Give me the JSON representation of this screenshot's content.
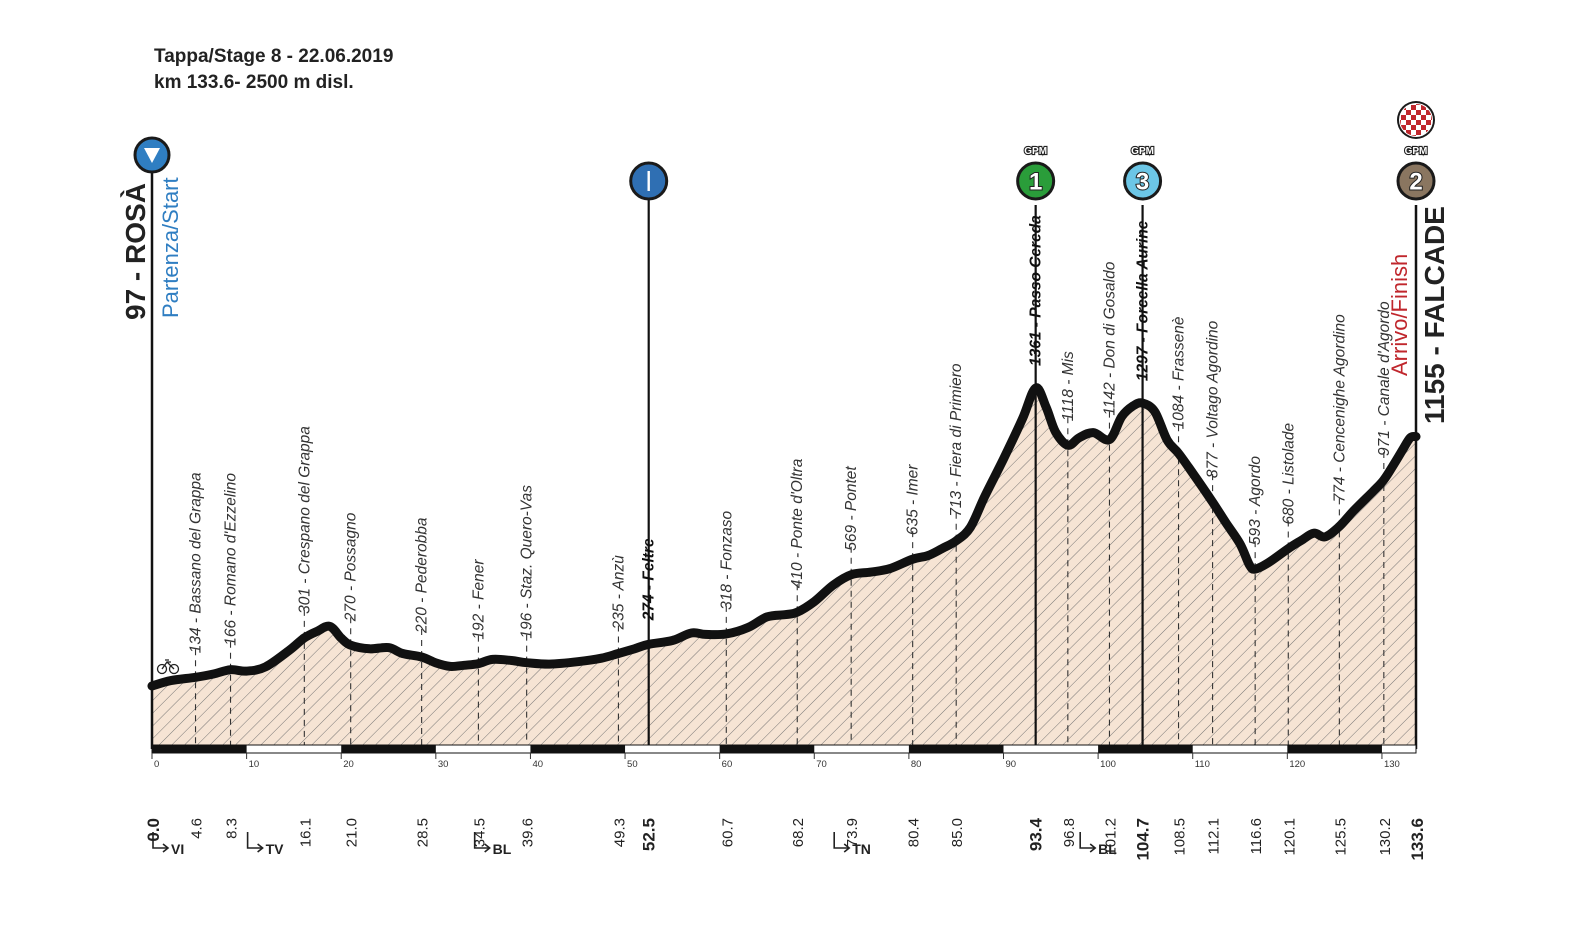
{
  "header": {
    "line1": "Tappa/Stage 8 - 22.06.2019",
    "line2": "km 133.6- 2500 m disl."
  },
  "colors": {
    "fill": "#f6e4d4",
    "hatch": "#6b6b6b",
    "outline": "#111111",
    "start_blue": "#2f7ec2",
    "finish_red": "#c0272d",
    "gpm1_green": "#2a9d3a",
    "gpm3_light_blue": "#6cc6e6",
    "gpm2_brown": "#8a7660",
    "feed_blue": "#2f6fb3"
  },
  "chart_data": {
    "type": "area",
    "title": "Tappa/Stage 8 - 22.06.2019",
    "subtitle": "km 133.6- 2500 m disl.",
    "xlabel": "",
    "ylabel": "",
    "xlim": [
      0,
      133.6
    ],
    "ylim": [
      0,
      1361
    ],
    "axis_ticks": [
      0,
      10,
      20,
      30,
      40,
      50,
      60,
      70,
      80,
      90,
      100,
      110,
      120,
      130
    ],
    "profile": [
      [
        0,
        97
      ],
      [
        2,
        120
      ],
      [
        4.6,
        134
      ],
      [
        6.5,
        148
      ],
      [
        8.3,
        166
      ],
      [
        10,
        160
      ],
      [
        12,
        178
      ],
      [
        14.5,
        248
      ],
      [
        16.1,
        301
      ],
      [
        17.5,
        330
      ],
      [
        18.8,
        350
      ],
      [
        20,
        300
      ],
      [
        21,
        270
      ],
      [
        23,
        255
      ],
      [
        25,
        260
      ],
      [
        26.5,
        235
      ],
      [
        28.5,
        220
      ],
      [
        30,
        195
      ],
      [
        31.5,
        180
      ],
      [
        33,
        185
      ],
      [
        34.5,
        192
      ],
      [
        36,
        210
      ],
      [
        38,
        205
      ],
      [
        39.6,
        196
      ],
      [
        42,
        190
      ],
      [
        45,
        200
      ],
      [
        47.5,
        215
      ],
      [
        49.3,
        235
      ],
      [
        51,
        255
      ],
      [
        52.5,
        274
      ],
      [
        55,
        290
      ],
      [
        57,
        322
      ],
      [
        58.5,
        316
      ],
      [
        60.7,
        318
      ],
      [
        63,
        345
      ],
      [
        65,
        390
      ],
      [
        67,
        400
      ],
      [
        68.2,
        410
      ],
      [
        70,
        455
      ],
      [
        72,
        525
      ],
      [
        73.9,
        569
      ],
      [
        76,
        580
      ],
      [
        78,
        595
      ],
      [
        80.4,
        635
      ],
      [
        82,
        650
      ],
      [
        83.5,
        680
      ],
      [
        85,
        713
      ],
      [
        86.5,
        770
      ],
      [
        88,
        900
      ],
      [
        90,
        1060
      ],
      [
        92,
        1230
      ],
      [
        93.4,
        1361
      ],
      [
        94.5,
        1280
      ],
      [
        95.5,
        1175
      ],
      [
        96.8,
        1118
      ],
      [
        98,
        1150
      ],
      [
        99.5,
        1172
      ],
      [
        101.2,
        1142
      ],
      [
        102.5,
        1240
      ],
      [
        103.7,
        1285
      ],
      [
        104.7,
        1297
      ],
      [
        106,
        1260
      ],
      [
        107.3,
        1140
      ],
      [
        108.5,
        1084
      ],
      [
        110,
        1000
      ],
      [
        112.1,
        877
      ],
      [
        113.5,
        790
      ],
      [
        115,
        700
      ],
      [
        116,
        610
      ],
      [
        116.6,
        593
      ],
      [
        118,
        620
      ],
      [
        120.1,
        680
      ],
      [
        121.5,
        715
      ],
      [
        122.8,
        745
      ],
      [
        124,
        730
      ],
      [
        125.5,
        774
      ],
      [
        127,
        840
      ],
      [
        129,
        920
      ],
      [
        130.2,
        971
      ],
      [
        131.3,
        1040
      ],
      [
        132.2,
        1100
      ],
      [
        133,
        1150
      ],
      [
        133.6,
        1155
      ]
    ],
    "locations": [
      {
        "km": 4.6,
        "label": "134 - Bassano del Grappa",
        "km_label": "4.6",
        "bold": false
      },
      {
        "km": 8.3,
        "label": "166 - Romano d'Ezzelino",
        "km_label": "8.3",
        "bold": false
      },
      {
        "km": 16.1,
        "label": "301 - Crespano del Grappa",
        "km_label": "16.1",
        "bold": false
      },
      {
        "km": 21.0,
        "label": "270 - Possagno",
        "km_label": "21.0",
        "bold": false
      },
      {
        "km": 28.5,
        "label": "220 - Pederobba",
        "km_label": "28.5",
        "bold": false
      },
      {
        "km": 34.5,
        "label": "192 - Fener",
        "km_label": "34.5",
        "bold": false
      },
      {
        "km": 39.6,
        "label": "196 - Staz. Quero-Vas",
        "km_label": "39.6",
        "bold": false
      },
      {
        "km": 49.3,
        "label": "235 - Anzù",
        "km_label": "49.3",
        "bold": false
      },
      {
        "km": 52.5,
        "label": "274 - Feltre",
        "km_label": "52.5",
        "bold": true
      },
      {
        "km": 60.7,
        "label": "318 - Fonzaso",
        "km_label": "60.7",
        "bold": false
      },
      {
        "km": 68.2,
        "label": "410 - Ponte d'Oltra",
        "km_label": "68.2",
        "bold": false
      },
      {
        "km": 73.9,
        "label": "569 - Pontet",
        "km_label": "73.9",
        "bold": false
      },
      {
        "km": 80.4,
        "label": "635 - Imer",
        "km_label": "80.4",
        "bold": false
      },
      {
        "km": 85.0,
        "label": "713 - Fiera di Primiero",
        "km_label": "85.0",
        "bold": false
      },
      {
        "km": 93.4,
        "label": "1361 - Passo Cereda",
        "km_label": "93.4",
        "bold": true
      },
      {
        "km": 96.8,
        "label": "1118 - Mis",
        "km_label": "96.8",
        "bold": false
      },
      {
        "km": 101.2,
        "label": "1142 - Don di Gosaldo",
        "km_label": "101.2",
        "bold": false
      },
      {
        "km": 104.7,
        "label": "1297 - Forcella Aurine",
        "km_label": "104.7",
        "bold": true
      },
      {
        "km": 108.5,
        "label": "1084 - Frassenè",
        "km_label": "108.5",
        "bold": false
      },
      {
        "km": 112.1,
        "label": "877 - Voltago Agordino",
        "km_label": "112.1",
        "bold": false
      },
      {
        "km": 116.6,
        "label": "593 - Agordo",
        "km_label": "116.6",
        "bold": false
      },
      {
        "km": 120.1,
        "label": "680 - Listolade",
        "km_label": "120.1",
        "bold": false
      },
      {
        "km": 125.5,
        "label": "774 - Cencenighe Agordino",
        "km_label": "125.5",
        "bold": false
      },
      {
        "km": 130.2,
        "label": "971 - Canale d'Agordo",
        "km_label": "130.2",
        "bold": false
      }
    ],
    "start": {
      "km": 0.0,
      "km_label": "0.0",
      "label": "97 - ROSÀ",
      "sublabel": "Partenza/Start"
    },
    "finish": {
      "km": 133.6,
      "km_label": "133.6",
      "label": "1155 - FALCADE",
      "sublabel": "Arrivo/Finish"
    },
    "gpm": [
      {
        "km": 93.4,
        "category": "1",
        "label": "GPM",
        "color": "#2a9d3a"
      },
      {
        "km": 104.7,
        "category": "3",
        "label": "GPM",
        "color": "#6cc6e6"
      },
      {
        "km": 133.6,
        "category": "2",
        "label": "GPM",
        "color": "#8a7660"
      }
    ],
    "feed_zone": {
      "km": 52.5,
      "icon": "info-i-icon"
    },
    "provinces": [
      {
        "km": 0.0,
        "label": "VI"
      },
      {
        "km": 10.0,
        "label": "TV"
      },
      {
        "km": 34.0,
        "label": "BL"
      },
      {
        "km": 72.0,
        "label": "TN"
      },
      {
        "km": 98.0,
        "label": "BL"
      }
    ]
  }
}
